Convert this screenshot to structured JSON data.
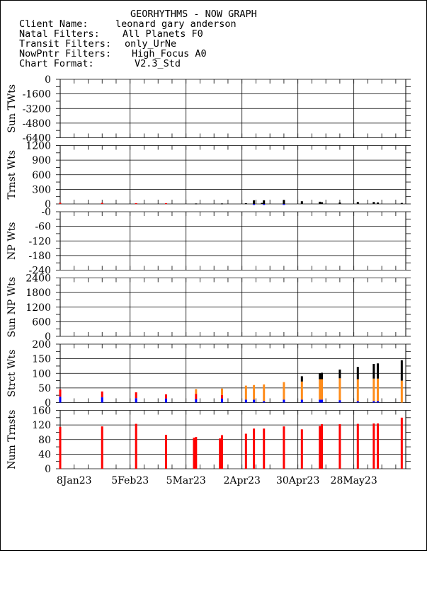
{
  "header": {
    "title": "GEORHYTHMS - NOW GRAPH",
    "lines": [
      {
        "label": "Client Name:",
        "value": "leonard gary anderson"
      },
      {
        "label": "Natal Filters:",
        "value": "All Planets F0"
      },
      {
        "label": "Transit Filters:",
        "value": "only_UrNe"
      },
      {
        "label": "NowPntr Filters:",
        "value": "High_Focus A0"
      },
      {
        "label": "Chart Format:",
        "value": "V2.3_Std"
      }
    ]
  },
  "colors": {
    "red": "#ff0000",
    "blue": "#0000ff",
    "orange": "#ff8c1a",
    "black": "#000000"
  },
  "chart_data": {
    "type": "bar",
    "x_range": [
      "1Jan23",
      "23Jun23"
    ],
    "x_ticks": [
      "8Jan23",
      "5Feb23",
      "5Mar23",
      "2Apr23",
      "30Apr23",
      "28May23"
    ],
    "panels": [
      {
        "ylabel": "Sun TWts",
        "ylim": [
          -6400,
          0
        ],
        "yticks": [
          "0",
          "-1600",
          "-3200",
          "-4800",
          "-6400"
        ],
        "bars": []
      },
      {
        "ylabel": "Trnst Wts",
        "ylim": [
          0,
          1200
        ],
        "yticks": [
          "1200",
          "900",
          "600",
          "300",
          "0"
        ],
        "bars": [
          {
            "x": "1Jan23",
            "color": "red",
            "value": 25
          },
          {
            "x": "22Jan23",
            "color": "red",
            "value": 22
          },
          {
            "x": "8Feb23",
            "color": "red",
            "value": 15
          },
          {
            "x": "23Feb23",
            "color": "red",
            "value": 15
          },
          {
            "x": "10Mar23",
            "color": "black",
            "value": 10
          },
          {
            "x": "23Mar23",
            "color": "black",
            "value": 10
          },
          {
            "x": "4Apr23",
            "color": "black",
            "value": 15
          },
          {
            "x": "8Apr23",
            "color": "black",
            "value": 75
          },
          {
            "x": "8Apr23",
            "color": "blue",
            "value": -20
          },
          {
            "x": "12Apr23",
            "color": "black",
            "value": 20
          },
          {
            "x": "13Apr23",
            "color": "black",
            "value": 75
          },
          {
            "x": "13Apr23",
            "color": "blue",
            "value": -20
          },
          {
            "x": "23Apr23",
            "color": "black",
            "value": 80
          },
          {
            "x": "23Apr23",
            "color": "blue",
            "value": -20
          },
          {
            "x": "2May23",
            "color": "black",
            "value": 55
          },
          {
            "x": "11May23",
            "color": "black",
            "value": 45
          },
          {
            "x": "12May23",
            "color": "black",
            "value": 35
          },
          {
            "x": "21May23",
            "color": "black",
            "value": 30
          },
          {
            "x": "30May23",
            "color": "black",
            "value": 40
          },
          {
            "x": "7Jun23",
            "color": "black",
            "value": 40
          },
          {
            "x": "9Jun23",
            "color": "black",
            "value": 30
          },
          {
            "x": "21Jun23",
            "color": "black",
            "value": 20
          }
        ]
      },
      {
        "ylabel": "NP Wts",
        "ylim": [
          -240,
          0
        ],
        "yticks": [
          "-0",
          "-60",
          "-120",
          "-180",
          "-240"
        ],
        "bars": []
      },
      {
        "ylabel": "Sun NP Wts",
        "ylim": [
          0,
          2400
        ],
        "yticks": [
          "2400",
          "1800",
          "1200",
          "600",
          "0"
        ],
        "bars": []
      },
      {
        "ylabel": "Strct Wts",
        "ylim": [
          0,
          200
        ],
        "yticks": [
          "200",
          "150",
          "100",
          "50",
          "0"
        ],
        "stacks": [
          {
            "x": "1Jan23",
            "segments": [
              {
                "color": "blue",
                "value": 20
              },
              {
                "color": "red",
                "value": 25
              }
            ]
          },
          {
            "x": "22Jan23",
            "segments": [
              {
                "color": "blue",
                "value": 18
              },
              {
                "color": "red",
                "value": 20
              }
            ]
          },
          {
            "x": "8Feb23",
            "segments": [
              {
                "color": "blue",
                "value": 15
              },
              {
                "color": "red",
                "value": 20
              }
            ]
          },
          {
            "x": "23Feb23",
            "segments": [
              {
                "color": "blue",
                "value": 14
              },
              {
                "color": "red",
                "value": 14
              }
            ]
          },
          {
            "x": "10Mar23",
            "segments": [
              {
                "color": "blue",
                "value": 12
              },
              {
                "color": "red",
                "value": 18
              },
              {
                "color": "orange",
                "value": 16
              }
            ]
          },
          {
            "x": "23Mar23",
            "segments": [
              {
                "color": "blue",
                "value": 14
              },
              {
                "color": "red",
                "value": 12
              },
              {
                "color": "orange",
                "value": 22
              }
            ]
          },
          {
            "x": "4Apr23",
            "segments": [
              {
                "color": "blue",
                "value": 10
              },
              {
                "color": "orange",
                "value": 48
              }
            ]
          },
          {
            "x": "8Apr23",
            "segments": [
              {
                "color": "blue",
                "value": 10
              },
              {
                "color": "orange",
                "value": 50
              }
            ]
          },
          {
            "x": "13Apr23",
            "segments": [
              {
                "color": "blue",
                "value": 5
              },
              {
                "color": "orange",
                "value": 57
              }
            ]
          },
          {
            "x": "23Apr23",
            "segments": [
              {
                "color": "blue",
                "value": 10
              },
              {
                "color": "orange",
                "value": 60
              }
            ]
          },
          {
            "x": "2May23",
            "segments": [
              {
                "color": "blue",
                "value": 10
              },
              {
                "color": "orange",
                "value": 62
              },
              {
                "color": "black",
                "value": 18
              }
            ]
          },
          {
            "x": "11May23",
            "segments": [
              {
                "color": "blue",
                "value": 10
              },
              {
                "color": "orange",
                "value": 70
              },
              {
                "color": "black",
                "value": 20
              }
            ]
          },
          {
            "x": "12May23",
            "segments": [
              {
                "color": "blue",
                "value": 10
              },
              {
                "color": "orange",
                "value": 70
              },
              {
                "color": "black",
                "value": 22
              }
            ]
          },
          {
            "x": "21May23",
            "segments": [
              {
                "color": "blue",
                "value": 8
              },
              {
                "color": "orange",
                "value": 75
              },
              {
                "color": "black",
                "value": 30
              }
            ]
          },
          {
            "x": "30May23",
            "segments": [
              {
                "color": "blue",
                "value": 5
              },
              {
                "color": "orange",
                "value": 75
              },
              {
                "color": "black",
                "value": 42
              }
            ]
          },
          {
            "x": "7Jun23",
            "segments": [
              {
                "color": "blue",
                "value": 5
              },
              {
                "color": "orange",
                "value": 77
              },
              {
                "color": "black",
                "value": 50
              }
            ]
          },
          {
            "x": "9Jun23",
            "segments": [
              {
                "color": "blue",
                "value": 5
              },
              {
                "color": "orange",
                "value": 77
              },
              {
                "color": "black",
                "value": 52
              }
            ]
          },
          {
            "x": "21Jun23",
            "segments": [
              {
                "color": "orange",
                "value": 75
              },
              {
                "color": "black",
                "value": 70
              }
            ]
          }
        ]
      },
      {
        "ylabel": "Num Trnsts",
        "ylim": [
          0,
          160
        ],
        "yticks": [
          "160",
          "120",
          "80",
          "40",
          "0"
        ],
        "bars": [
          {
            "x": "1Jan23",
            "color": "red",
            "value": 115
          },
          {
            "x": "22Jan23",
            "color": "red",
            "value": 116
          },
          {
            "x": "8Feb23",
            "color": "red",
            "value": 123
          },
          {
            "x": "23Feb23",
            "color": "red",
            "value": 93
          },
          {
            "x": "9Mar23",
            "color": "red",
            "value": 85
          },
          {
            "x": "10Mar23",
            "color": "red",
            "value": 87
          },
          {
            "x": "22Mar23",
            "color": "red",
            "value": 83
          },
          {
            "x": "23Mar23",
            "color": "red",
            "value": 92
          },
          {
            "x": "4Apr23",
            "color": "red",
            "value": 96
          },
          {
            "x": "8Apr23",
            "color": "red",
            "value": 110
          },
          {
            "x": "13Apr23",
            "color": "red",
            "value": 110
          },
          {
            "x": "23Apr23",
            "color": "red",
            "value": 116
          },
          {
            "x": "2May23",
            "color": "red",
            "value": 108
          },
          {
            "x": "11May23",
            "color": "red",
            "value": 117
          },
          {
            "x": "12May23",
            "color": "red",
            "value": 122
          },
          {
            "x": "21May23",
            "color": "red",
            "value": 122
          },
          {
            "x": "30May23",
            "color": "red",
            "value": 123
          },
          {
            "x": "7Jun23",
            "color": "red",
            "value": 124
          },
          {
            "x": "9Jun23",
            "color": "red",
            "value": 124
          },
          {
            "x": "21Jun23",
            "color": "red",
            "value": 140
          }
        ]
      }
    ]
  }
}
